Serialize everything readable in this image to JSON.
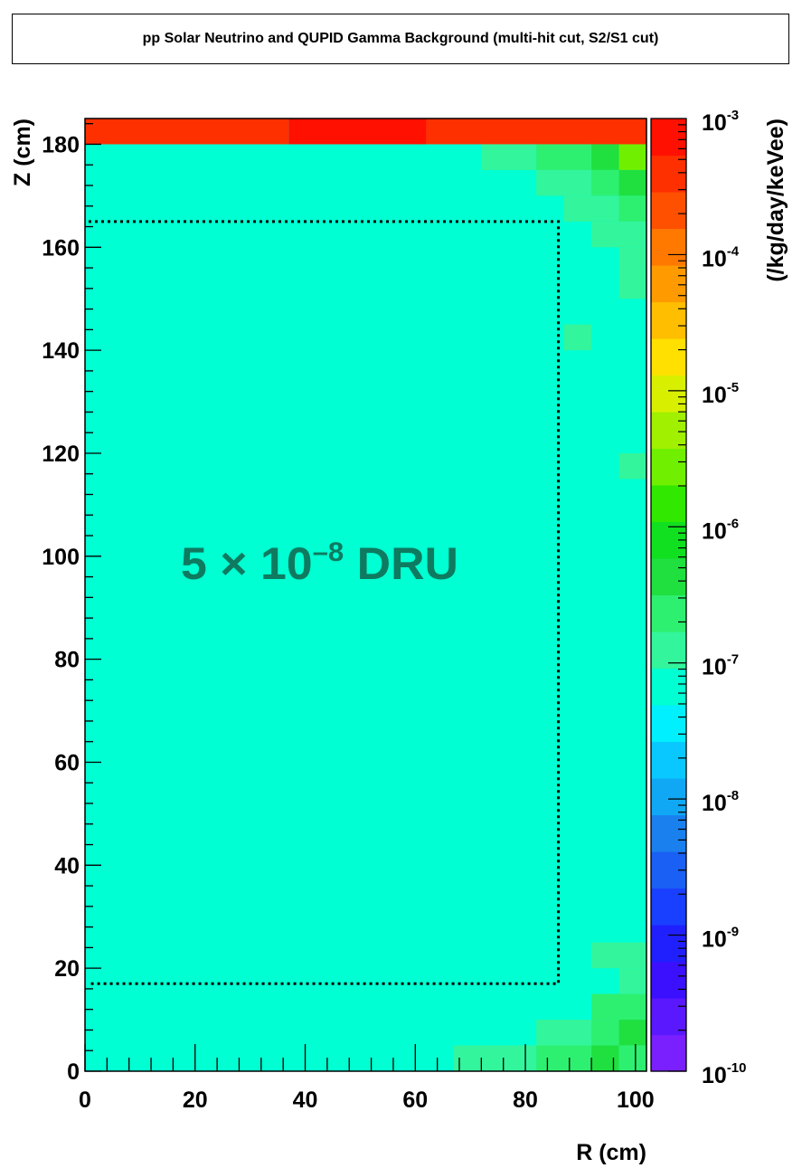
{
  "chart_data": {
    "type": "heatmap",
    "title": "pp Solar Neutrino and QUPID Gamma Background (multi-hit cut, S2/S1 cut)",
    "xlabel": "R (cm)",
    "ylabel": "Z (cm)",
    "colorbar_label": "(/kg/day/keVee)",
    "x_ticks": [
      "0",
      "20",
      "40",
      "60",
      "80",
      "100"
    ],
    "y_ticks": [
      "0",
      "20",
      "40",
      "60",
      "80",
      "100",
      "120",
      "140",
      "160",
      "180"
    ],
    "xlim": [
      0,
      102
    ],
    "ylim": [
      0,
      185
    ],
    "z_scale": "log",
    "zlim": [
      1e-10,
      0.001
    ],
    "colorbar_ticks": [
      {
        "base": "10",
        "exp": "-3",
        "value": 0.001
      },
      {
        "base": "10",
        "exp": "-4",
        "value": 0.0001
      },
      {
        "base": "10",
        "exp": "-5",
        "value": 1e-05
      },
      {
        "base": "10",
        "exp": "-6",
        "value": 1e-06
      },
      {
        "base": "10",
        "exp": "-7",
        "value": 1e-07
      },
      {
        "base": "10",
        "exp": "-8",
        "value": 1e-08
      },
      {
        "base": "10",
        "exp": "-9",
        "value": 1e-09
      },
      {
        "base": "10",
        "exp": "-10",
        "value": 1e-10
      }
    ],
    "colorbar_colors": [
      "#7a20ff",
      "#5a18ff",
      "#3a10ff",
      "#2020ff",
      "#1a40ff",
      "#1a60f5",
      "#1a80ee",
      "#10a8f5",
      "#08c8ff",
      "#00f0ff",
      "#00ffd2",
      "#33f59c",
      "#2ef070",
      "#20e040",
      "#10e020",
      "#30e800",
      "#70f000",
      "#a0f000",
      "#d8f000",
      "#ffe000",
      "#ffbe00",
      "#ff9a00",
      "#ff7800",
      "#ff5000",
      "#ff3000",
      "#ff1000"
    ],
    "background_value": 5e-08,
    "background_color": "#00ffd2",
    "cells": [
      {
        "r": [
          0,
          37
        ],
        "z": [
          180,
          185
        ],
        "color": "#ff3000",
        "value": 0.0004
      },
      {
        "r": [
          37,
          62
        ],
        "z": [
          180,
          185
        ],
        "color": "#ff1000",
        "value": 0.0008
      },
      {
        "r": [
          62,
          102
        ],
        "z": [
          180,
          185
        ],
        "color": "#ff3000",
        "value": 0.0004
      },
      {
        "r": [
          72,
          82
        ],
        "z": [
          175,
          180
        ],
        "color": "#33f59c",
        "value": 1.5e-07
      },
      {
        "r": [
          82,
          92
        ],
        "z": [
          175,
          180
        ],
        "color": "#2ef070",
        "value": 3e-07
      },
      {
        "r": [
          92,
          97
        ],
        "z": [
          175,
          180
        ],
        "color": "#20e040",
        "value": 6e-07
      },
      {
        "r": [
          97,
          102
        ],
        "z": [
          175,
          180
        ],
        "color": "#70f000",
        "value": 3e-06
      },
      {
        "r": [
          82,
          92
        ],
        "z": [
          170,
          175
        ],
        "color": "#33f59c",
        "value": 1.5e-07
      },
      {
        "r": [
          92,
          97
        ],
        "z": [
          170,
          175
        ],
        "color": "#2ef070",
        "value": 3e-07
      },
      {
        "r": [
          97,
          102
        ],
        "z": [
          170,
          175
        ],
        "color": "#20e040",
        "value": 6e-07
      },
      {
        "r": [
          87,
          97
        ],
        "z": [
          165,
          170
        ],
        "color": "#33f59c",
        "value": 1.5e-07
      },
      {
        "r": [
          97,
          102
        ],
        "z": [
          165,
          170
        ],
        "color": "#2ef070",
        "value": 3e-07
      },
      {
        "r": [
          92,
          102
        ],
        "z": [
          160,
          165
        ],
        "color": "#33f59c",
        "value": 1.5e-07
      },
      {
        "r": [
          97,
          102
        ],
        "z": [
          150,
          160
        ],
        "color": "#33f59c",
        "value": 1.5e-07
      },
      {
        "r": [
          87,
          92
        ],
        "z": [
          140,
          145
        ],
        "color": "#33f59c",
        "value": 1.5e-07
      },
      {
        "r": [
          97,
          102
        ],
        "z": [
          115,
          120
        ],
        "color": "#33f59c",
        "value": 1.5e-07
      },
      {
        "r": [
          92,
          102
        ],
        "z": [
          20,
          25
        ],
        "color": "#33f59c",
        "value": 1.5e-07
      },
      {
        "r": [
          97,
          102
        ],
        "z": [
          15,
          20
        ],
        "color": "#33f59c",
        "value": 1.5e-07
      },
      {
        "r": [
          92,
          102
        ],
        "z": [
          10,
          15
        ],
        "color": "#2ef070",
        "value": 3e-07
      },
      {
        "r": [
          82,
          92
        ],
        "z": [
          5,
          10
        ],
        "color": "#33f59c",
        "value": 1.5e-07
      },
      {
        "r": [
          92,
          97
        ],
        "z": [
          5,
          10
        ],
        "color": "#2ef070",
        "value": 3e-07
      },
      {
        "r": [
          97,
          102
        ],
        "z": [
          5,
          10
        ],
        "color": "#20e040",
        "value": 6e-07
      },
      {
        "r": [
          67,
          82
        ],
        "z": [
          0,
          5
        ],
        "color": "#33f59c",
        "value": 1.5e-07
      },
      {
        "r": [
          82,
          92
        ],
        "z": [
          0,
          5
        ],
        "color": "#2ef070",
        "value": 3e-07
      },
      {
        "r": [
          92,
          97
        ],
        "z": [
          0,
          5
        ],
        "color": "#20e040",
        "value": 6e-07
      },
      {
        "r": [
          97,
          102
        ],
        "z": [
          0,
          5
        ],
        "color": "#2ef070",
        "value": 3e-07
      }
    ],
    "fiducial_region": {
      "r": [
        0,
        86
      ],
      "z": [
        17,
        165
      ],
      "style": "dotted"
    },
    "annotation": {
      "base": "5 × 10",
      "exp": "–8",
      "suffix": " DRU",
      "color": "#0e7a60"
    }
  }
}
